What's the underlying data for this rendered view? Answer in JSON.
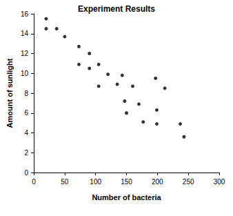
{
  "chart_data": {
    "type": "scatter",
    "title": "Experiment Results",
    "x_label": "Number of bacteria",
    "y_label": "Amount of sunlight",
    "x": [
      20,
      20,
      37,
      50,
      73,
      73,
      90,
      90,
      105,
      105,
      120,
      135,
      143,
      147,
      150,
      160,
      170,
      177,
      197,
      199,
      199,
      212,
      237,
      243
    ],
    "values": [
      15.5,
      14.5,
      14.5,
      13.7,
      12.7,
      10.9,
      12,
      10.5,
      10.9,
      8.7,
      9.9,
      8.9,
      9.8,
      7.2,
      6,
      8.7,
      6.9,
      5.1,
      9.5,
      6.3,
      4.9,
      8.5,
      4.9,
      3.6
    ],
    "color": "#000000",
    "marker": "circle",
    "xlim": [
      0,
      300
    ],
    "xticks": [
      0,
      50,
      100,
      150,
      200,
      250,
      300
    ],
    "ylim": [
      0,
      16
    ],
    "yticks": [
      0,
      2,
      4,
      6,
      8,
      10,
      12,
      14,
      16
    ],
    "grid": false
  }
}
